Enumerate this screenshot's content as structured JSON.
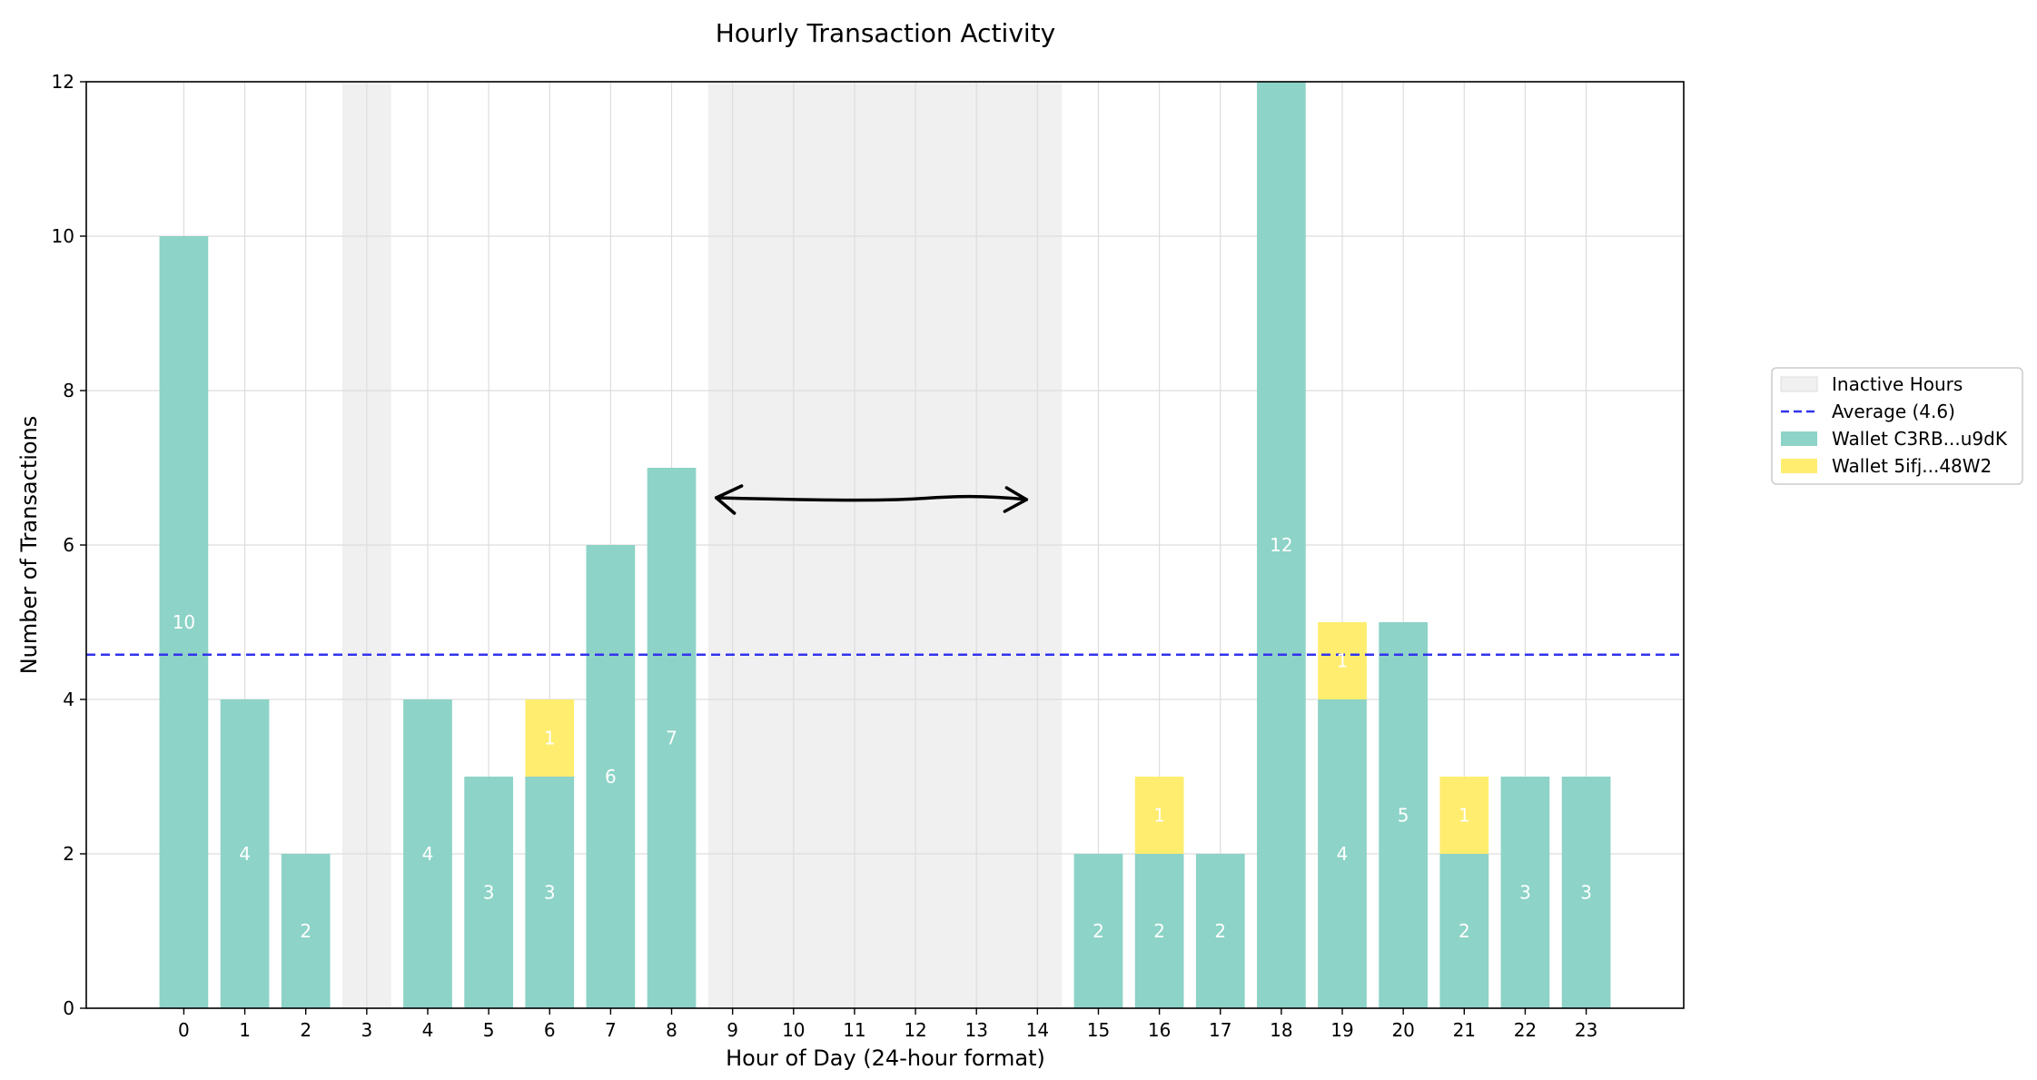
{
  "chart_data": {
    "type": "bar",
    "stacked": true,
    "title": "Hourly Transaction Activity",
    "xlabel": "Hour of Day (24-hour format)",
    "ylabel": "Number of Transactions",
    "x": [
      0,
      1,
      2,
      3,
      4,
      5,
      6,
      7,
      8,
      9,
      10,
      11,
      12,
      13,
      14,
      15,
      16,
      17,
      18,
      19,
      20,
      21,
      22,
      23
    ],
    "categories": [
      "0",
      "1",
      "2",
      "3",
      "4",
      "5",
      "6",
      "7",
      "8",
      "9",
      "10",
      "11",
      "12",
      "13",
      "14",
      "15",
      "16",
      "17",
      "18",
      "19",
      "20",
      "21",
      "22",
      "23"
    ],
    "ylim": [
      0,
      12
    ],
    "yticks": [
      0,
      2,
      4,
      6,
      8,
      10,
      12
    ],
    "grid": true,
    "series": [
      {
        "name": "Wallet C3RB...u9dK",
        "color": "#8dd3c7",
        "values": [
          10,
          4,
          2,
          0,
          4,
          3,
          3,
          6,
          7,
          0,
          0,
          0,
          0,
          0,
          0,
          2,
          2,
          2,
          12,
          4,
          5,
          2,
          3,
          3
        ]
      },
      {
        "name": "Wallet 5ifj...48W2",
        "color": "#ffed6f",
        "values": [
          0,
          0,
          0,
          0,
          0,
          0,
          1,
          0,
          0,
          0,
          0,
          0,
          0,
          0,
          0,
          0,
          1,
          0,
          0,
          1,
          0,
          1,
          0,
          0
        ]
      }
    ],
    "average": {
      "label": "Average (4.6)",
      "value": 4.58,
      "color": "#3333ee"
    },
    "inactive_hours": {
      "label": "Inactive Hours",
      "ranges": [
        [
          3,
          3
        ],
        [
          9,
          14
        ]
      ],
      "color": "#f0f0f0"
    },
    "legend_position": "right",
    "annotation": {
      "type": "double-arrow",
      "from_hour": 9,
      "to_hour": 14,
      "y": 6.6
    }
  }
}
